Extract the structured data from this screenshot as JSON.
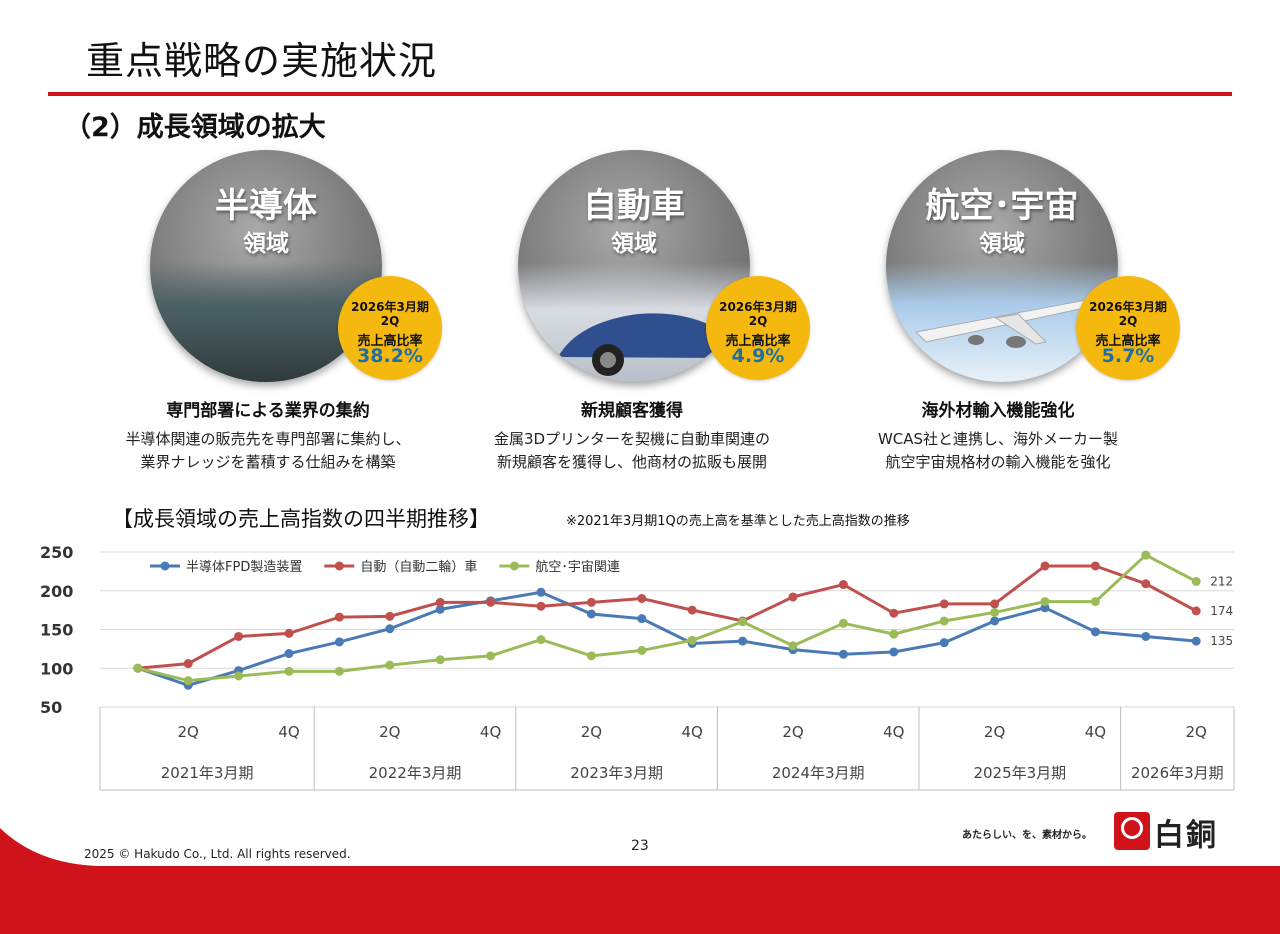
{
  "page": {
    "title": "重点戦略の実施状況",
    "subtitle": "（2）成長領域の拡大"
  },
  "segments": [
    {
      "main": "半導体",
      "sub": "領域",
      "badge_l1": "2026年3月期",
      "badge_l2": "2Q",
      "badge_l3": "売上高比率",
      "badge_value": "38.2%",
      "strategy": "専門部署による業界の集約",
      "desc1": "半導体関連の販売先を専門部署に集約し、",
      "desc2": "業界ナレッジを蓄積する仕組みを構築"
    },
    {
      "main": "自動車",
      "sub": "領域",
      "badge_l1": "2026年3月期",
      "badge_l2": "2Q",
      "badge_l3": "売上高比率",
      "badge_value": "4.9%",
      "strategy": "新規顧客獲得",
      "desc1": "金属3Dプリンターを契機に自動車関連の",
      "desc2": "新規顧客を獲得し、他商材の拡販も展開"
    },
    {
      "main": "航空･宇宙",
      "sub": "領域",
      "badge_l1": "2026年3月期",
      "badge_l2": "2Q",
      "badge_l3": "売上高比率",
      "badge_value": "5.7%",
      "strategy": "海外材輸入機能強化",
      "desc1": "WCAS社と連携し、海外メーカー製",
      "desc2": "航空宇宙規格材の輸入機能を強化"
    }
  ],
  "chart_heading": "【成長領域の売上高指数の四半期推移】",
  "chart_note": "※2021年3月期1Qの売上高を基準とした売上高指数の推移",
  "chart_data": {
    "type": "line",
    "ylim": [
      50,
      250
    ],
    "yticks": [
      "50",
      "100",
      "150",
      "200",
      "250"
    ],
    "x_tick_labels": [
      "",
      "2Q",
      "",
      "4Q",
      "",
      "2Q",
      "",
      "4Q",
      "",
      "2Q",
      "",
      "4Q",
      "",
      "2Q",
      "",
      "4Q",
      "",
      "2Q",
      "",
      "4Q",
      "",
      "2Q"
    ],
    "groups": [
      "2021年3月期",
      "2022年3月期",
      "2023年3月期",
      "2024年3月期",
      "2025年3月期",
      "2026年3月期"
    ],
    "group_sizes": [
      4,
      4,
      4,
      4,
      4,
      2
    ],
    "grid": true,
    "legend_position": "top-left",
    "series": [
      {
        "name": "半導体FPD製造装置",
        "color": "#4a7ab5",
        "values": [
          100,
          78,
          97,
          119,
          134,
          151,
          176,
          187,
          198,
          170,
          164,
          132,
          135,
          124,
          118,
          121,
          133,
          161,
          178,
          147,
          141,
          135
        ],
        "end_label": "135"
      },
      {
        "name": "自動（自動二輪）車",
        "color": "#c0504d",
        "values": [
          100,
          106,
          141,
          145,
          166,
          167,
          185,
          185,
          180,
          185,
          190,
          175,
          161,
          192,
          208,
          171,
          183,
          183,
          232,
          232,
          209,
          174
        ],
        "end_label": "174"
      },
      {
        "name": "航空･宇宙関連",
        "color": "#9bbb59",
        "values": [
          100,
          84,
          90,
          96,
          96,
          104,
          111,
          116,
          137,
          116,
          123,
          136,
          160,
          129,
          158,
          144,
          161,
          172,
          186,
          186,
          246,
          212
        ],
        "end_label": "212"
      }
    ]
  },
  "footer": {
    "page_number": "23",
    "copyright": "2025 © Hakudo Co., Ltd. All rights reserved.",
    "slogan": "あたらしい、を、素材から。",
    "logo_text": "白銅"
  }
}
